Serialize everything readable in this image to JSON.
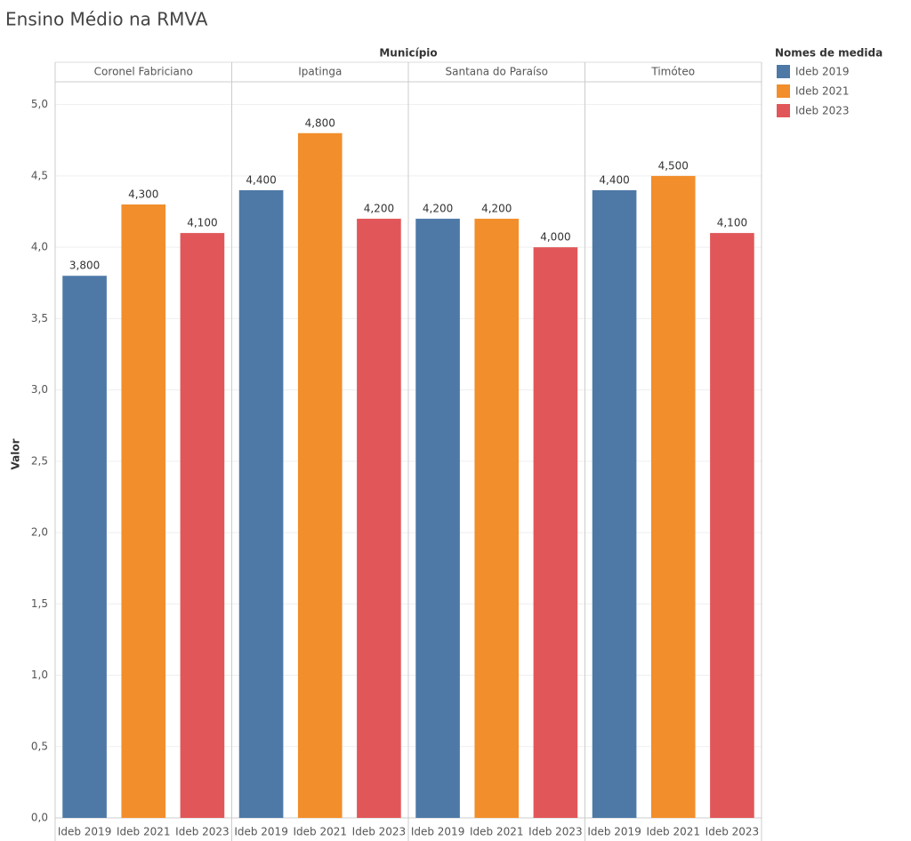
{
  "chart_data": {
    "type": "bar",
    "title": "Ensino Médio na RMVA",
    "facet_label": "Município",
    "categories": [
      "Coronel Fabriciano",
      "Ipatinga",
      "Santana do Paraíso",
      "Timóteo"
    ],
    "y_label": "Valor",
    "legend_title": "Nomes de medida",
    "series": [
      {
        "name": "Ideb 2019",
        "color": "#4e79a7",
        "values": [
          3.8,
          4.4,
          4.2,
          4.4
        ],
        "value_labels": [
          "3,800",
          "4,400",
          "4,200",
          "4,400"
        ]
      },
      {
        "name": "Ideb 2021",
        "color": "#f28e2b",
        "values": [
          4.3,
          4.8,
          4.2,
          4.5
        ],
        "value_labels": [
          "4,300",
          "4,800",
          "4,200",
          "4,500"
        ]
      },
      {
        "name": "Ideb 2023",
        "color": "#e15759",
        "values": [
          4.1,
          4.2,
          4.0,
          4.1
        ],
        "value_labels": [
          "4,100",
          "4,200",
          "4,000",
          "4,100"
        ]
      }
    ],
    "ylim": [
      0,
      5.16
    ],
    "yticks": [
      {
        "value": 0,
        "label": "0,0"
      },
      {
        "value": 0.5,
        "label": "0,5"
      },
      {
        "value": 1,
        "label": "1,0"
      },
      {
        "value": 1.5,
        "label": "1,5"
      },
      {
        "value": 2,
        "label": "2,0"
      },
      {
        "value": 2.5,
        "label": "2,5"
      },
      {
        "value": 3,
        "label": "3,0"
      },
      {
        "value": 3.5,
        "label": "3,5"
      },
      {
        "value": 4,
        "label": "4,0"
      },
      {
        "value": 4.5,
        "label": "4,5"
      },
      {
        "value": 5,
        "label": "5,0"
      }
    ],
    "grid": true,
    "legend": "right"
  }
}
